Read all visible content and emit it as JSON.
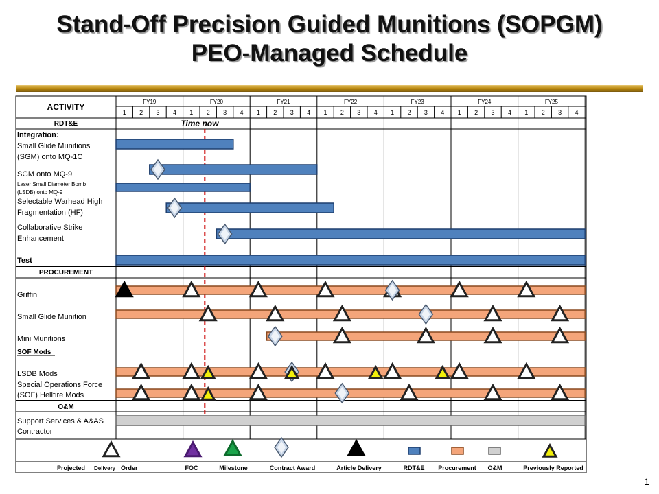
{
  "header": {
    "title_line1": "Stand-Off Precision Guided Munitions (SOPGM)",
    "title_line2": "PEO-Managed Schedule"
  },
  "page_number": "1",
  "time_now_label": "Time now",
  "colors": {
    "rdte_bar": "#4f81bd",
    "procurement_bar": "#f4a57a",
    "om_bar": "#d0d0d0",
    "time_now_line": "#cc0000",
    "divider": "#b8860b"
  },
  "chart_data": {
    "type": "table",
    "activity_header": "ACTIVITY",
    "fiscal_years": [
      "FY19",
      "FY20",
      "FY21",
      "FY22",
      "FY23",
      "FY24",
      "FY25"
    ],
    "quarters": [
      "1",
      "2",
      "3",
      "4"
    ],
    "time_now": {
      "fy": "FY20",
      "quarter": 2.3
    },
    "sections": [
      {
        "name": "RDT&E"
      },
      {
        "name": "PROCUREMENT"
      },
      {
        "name": "SOF Mods"
      },
      {
        "name": "O&M"
      }
    ],
    "rows": [
      {
        "label": [
          "Integration:",
          "Small Glide Munitions",
          "(SGM) onto MQ-1C"
        ],
        "bar": {
          "type": "RDT&E",
          "start": "FY19 Q1",
          "end": "FY20 Q3"
        },
        "markers": []
      },
      {
        "label": [
          "SGM onto MQ-9"
        ],
        "bar": {
          "type": "RDT&E",
          "start": "FY19 Q3",
          "end": "FY21 Q4"
        },
        "markers": [
          {
            "type": "Contract Award",
            "at": "FY19 Q3"
          }
        ]
      },
      {
        "label": [
          "Laser Small Diameter Bomb",
          "(LSDB) onto MQ-9"
        ],
        "bar": {
          "type": "RDT&E",
          "start": "FY19 Q1",
          "end": "FY20 Q4"
        },
        "markers": []
      },
      {
        "label": [
          "Selectable Warhead High",
          "Fragmentation (HF)"
        ],
        "bar": {
          "type": "RDT&E",
          "start": "FY19 Q4",
          "end": "FY22 Q1"
        },
        "markers": [
          {
            "type": "Contract Award",
            "at": "FY19 Q4"
          }
        ]
      },
      {
        "label": [
          "Collaborative Strike",
          "Enhancement"
        ],
        "bar": {
          "type": "RDT&E",
          "start": "FY20 Q3",
          "end": "FY25 Q4"
        },
        "markers": [
          {
            "type": "Contract Award",
            "at": "FY20 Q3"
          }
        ]
      },
      {
        "label": [
          "Test"
        ],
        "bar": {
          "type": "RDT&E",
          "start": "FY19 Q1",
          "end": "FY25 Q4"
        },
        "markers": []
      },
      {
        "label": [
          "Griffin"
        ],
        "bar": {
          "type": "Procurement",
          "start": "FY19 Q1",
          "end": "FY25 Q4"
        },
        "markers": [
          {
            "type": "Article Delivery",
            "at": "FY19 Q1"
          },
          {
            "type": "Projected Delivery Order",
            "at": "FY20 Q1"
          },
          {
            "type": "Projected Delivery Order",
            "at": "FY21 Q1"
          },
          {
            "type": "Projected Delivery Order",
            "at": "FY22 Q1"
          },
          {
            "type": "Projected Delivery Order",
            "at": "FY23 Q1"
          },
          {
            "type": "Contract Award",
            "at": "FY23 Q1"
          },
          {
            "type": "Projected Delivery Order",
            "at": "FY24 Q1"
          },
          {
            "type": "Projected Delivery Order",
            "at": "FY25 Q1"
          }
        ]
      },
      {
        "label": [
          "Small Glide Munition"
        ],
        "bar": {
          "type": "Procurement",
          "start": "FY19 Q1",
          "end": "FY25 Q4"
        },
        "markers": [
          {
            "type": "Projected Delivery Order",
            "at": "FY20 Q2"
          },
          {
            "type": "Projected Delivery Order",
            "at": "FY21 Q2"
          },
          {
            "type": "Projected Delivery Order",
            "at": "FY22 Q2"
          },
          {
            "type": "Contract Award",
            "at": "FY23 Q3"
          },
          {
            "type": "Projected Delivery Order",
            "at": "FY24 Q3"
          },
          {
            "type": "Projected Delivery Order",
            "at": "FY25 Q3"
          }
        ]
      },
      {
        "label": [
          "Mini Munitions"
        ],
        "bar": {
          "type": "Procurement",
          "start": "FY21 Q2",
          "end": "FY25 Q4"
        },
        "markers": [
          {
            "type": "Contract Award",
            "at": "FY21 Q2"
          },
          {
            "type": "Projected Delivery Order",
            "at": "FY22 Q2"
          },
          {
            "type": "Projected Delivery Order",
            "at": "FY23 Q3"
          },
          {
            "type": "Projected Delivery Order",
            "at": "FY24 Q3"
          },
          {
            "type": "Projected Delivery Order",
            "at": "FY25 Q3"
          }
        ]
      },
      {
        "label": [
          "LSDB Mods"
        ],
        "bar": {
          "type": "Procurement",
          "start": "FY19 Q1",
          "end": "FY25 Q4"
        },
        "markers": [
          {
            "type": "Projected Delivery Order",
            "at": "FY19 Q2"
          },
          {
            "type": "Projected Delivery Order",
            "at": "FY20 Q1"
          },
          {
            "type": "Previously Reported",
            "at": "FY20 Q2"
          },
          {
            "type": "Projected Delivery Order",
            "at": "FY21 Q1"
          },
          {
            "type": "Contract Award",
            "at": "FY21 Q3"
          },
          {
            "type": "Previously Reported",
            "at": "FY21 Q3"
          },
          {
            "type": "Projected Delivery Order",
            "at": "FY22 Q1"
          },
          {
            "type": "Previously Reported",
            "at": "FY22 Q4"
          },
          {
            "type": "Projected Delivery Order",
            "at": "FY23 Q1"
          },
          {
            "type": "Previously Reported",
            "at": "FY23 Q4"
          },
          {
            "type": "Projected Delivery Order",
            "at": "FY24 Q1"
          },
          {
            "type": "Projected Delivery Order",
            "at": "FY25 Q1"
          }
        ]
      },
      {
        "label": [
          "Special Operations Force",
          "(SOF) Hellfire Mods"
        ],
        "bar": {
          "type": "Procurement",
          "start": "FY19 Q1",
          "end": "FY25 Q4"
        },
        "markers": [
          {
            "type": "Projected Delivery Order",
            "at": "FY19 Q2"
          },
          {
            "type": "Projected Delivery Order",
            "at": "FY20 Q1"
          },
          {
            "type": "Previously Reported",
            "at": "FY20 Q2"
          },
          {
            "type": "Projected Delivery Order",
            "at": "FY21 Q1"
          },
          {
            "type": "Contract Award",
            "at": "FY22 Q2"
          },
          {
            "type": "Projected Delivery Order",
            "at": "FY23 Q2"
          },
          {
            "type": "Projected Delivery Order",
            "at": "FY24 Q3"
          },
          {
            "type": "Projected Delivery Order",
            "at": "FY25 Q3"
          }
        ]
      },
      {
        "label": [
          "Support Services & A&AS",
          "Contractor"
        ],
        "bar": {
          "type": "O&M",
          "start": "FY19 Q1",
          "end": "FY25 Q4"
        },
        "markers": []
      }
    ],
    "legend": [
      "Projected Delivery Order",
      "FOC",
      "Milestone",
      "Contract Award",
      "Article Delivery",
      "RDT&E",
      "Procurement",
      "O&M",
      "Previously Reported"
    ],
    "legend_text": [
      {
        "text": "Projected"
      },
      {
        "text": "Delivery",
        "small": true
      },
      {
        "text": "Order"
      },
      {
        "text": "FOC"
      },
      {
        "text": "Milestone"
      },
      {
        "text": "Contract Award"
      },
      {
        "text": "Article Delivery"
      },
      {
        "text": "RDT&E"
      },
      {
        "text": "Procurement"
      },
      {
        "text": "O&M"
      },
      {
        "text": "Previously Reported"
      }
    ]
  }
}
